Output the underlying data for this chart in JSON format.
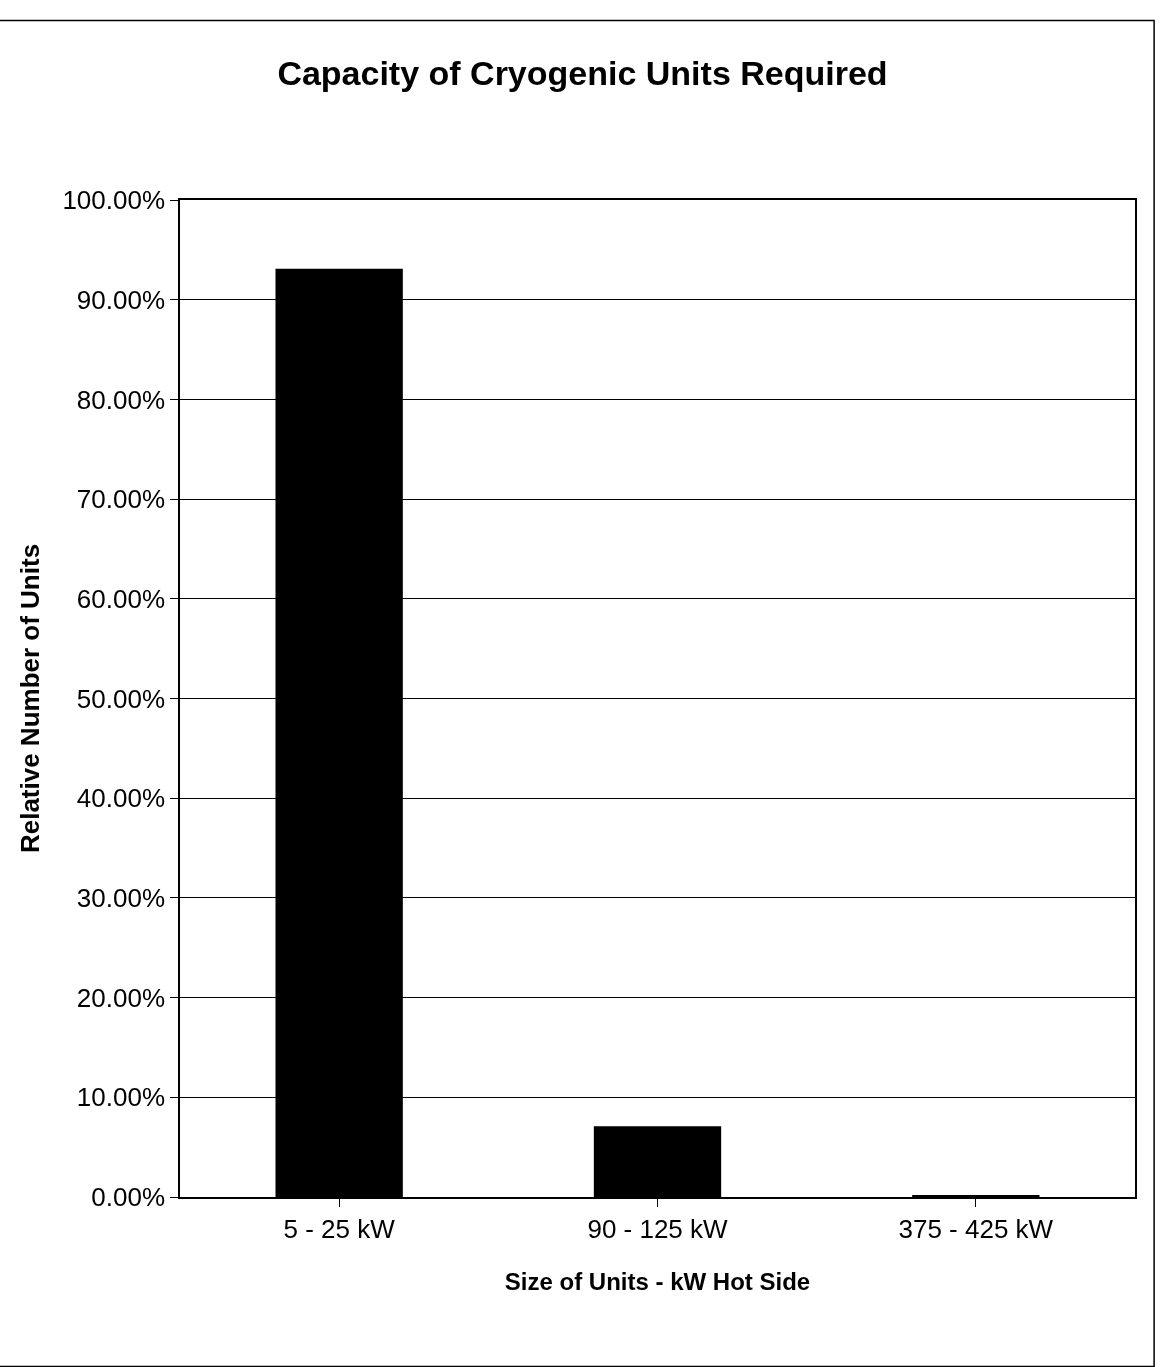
{
  "chart_data": {
    "type": "bar",
    "title": "Capacity of Cryogenic Units Required",
    "xlabel": "Size of Units - kW Hot Side",
    "ylabel": "Relative Number of Units",
    "categories": [
      "5 - 25 kW",
      "90 - 125 kW",
      "375 - 425 kW"
    ],
    "values": [
      93.1,
      7.1,
      0.2
    ],
    "color": "#000000",
    "ylim": [
      0,
      100
    ],
    "yticks": [
      {
        "value": 0,
        "label": "0.00%"
      },
      {
        "value": 10,
        "label": "10.00%"
      },
      {
        "value": 20,
        "label": "20.00%"
      },
      {
        "value": 30,
        "label": "30.00%"
      },
      {
        "value": 40,
        "label": "40.00%"
      },
      {
        "value": 50,
        "label": "50.00%"
      },
      {
        "value": 60,
        "label": "60.00%"
      },
      {
        "value": 70,
        "label": "70.00%"
      },
      {
        "value": 80,
        "label": "80.00%"
      },
      {
        "value": 90,
        "label": "90.00%"
      },
      {
        "value": 100,
        "label": "100.00%"
      }
    ],
    "grid": "y",
    "legend": false
  }
}
